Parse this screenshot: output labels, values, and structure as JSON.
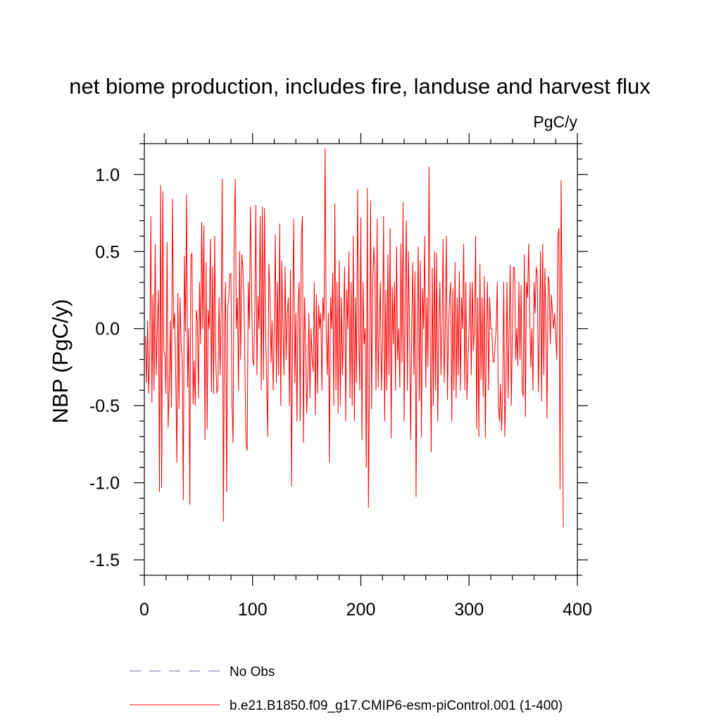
{
  "chart_data": {
    "type": "line",
    "title": "net biome production, includes fire, landuse and harvest flux",
    "units": "PgC/y",
    "ylabel": "NBP  (PgC/y)",
    "xlabel": "",
    "xlim": [
      0,
      400
    ],
    "ylim": [
      -1.6,
      1.2
    ],
    "x_ticks": [
      0,
      100,
      200,
      300,
      400
    ],
    "y_ticks": [
      -1.5,
      -1.0,
      -0.5,
      0.0,
      0.5,
      1.0
    ],
    "x_tick_labels": [
      "0",
      "100",
      "200",
      "300",
      "400"
    ],
    "y_tick_labels": [
      "-1.5",
      "-1.0",
      "-0.5",
      "0.0",
      "0.5",
      "1.0"
    ],
    "grid": false,
    "series": [
      {
        "name": "b.e21.B1850.f09_g17.CMIP6-esm-piControl.001 (1-400)",
        "color": "#ff0000",
        "x_start": 1,
        "values": [
          -0.05,
          -0.35,
          0.05,
          -0.42,
          -0.18,
          0.73,
          -0.48,
          0.22,
          -0.4,
          0.55,
          -0.3,
          0.0,
          0.25,
          -1.06,
          0.93,
          -1.03,
          0.89,
          -0.14,
          -0.17,
          -0.42,
          0.56,
          -0.64,
          -0.4,
          0.05,
          -0.51,
          0.84,
          0.0,
          0.1,
          -0.3,
          -0.87,
          0.23,
          -0.52,
          0.2,
          -0.1,
          -0.2,
          -1.11,
          0.47,
          -0.02,
          0.87,
          -0.38,
          0.0,
          -1.14,
          0.47,
          0.49,
          -0.49,
          -0.21,
          -0.5,
          0.12,
          0.05,
          -0.45,
          0.3,
          -0.1,
          0.69,
          0.0,
          0.67,
          -0.72,
          0.43,
          -0.65,
          0.12,
          0.0,
          0.58,
          -0.41,
          0.4,
          -0.42,
          0.6,
          -0.2,
          -0.42,
          -0.38,
          0.2,
          -0.3,
          0.1,
          0.97,
          -1.25,
          0.0,
          0.3,
          -1.06,
          0.13,
          0.2,
          0.35,
          0.36,
          -0.5,
          -0.74,
          0.65,
          0.97,
          0.0,
          0.2,
          -0.4,
          0.5,
          -0.2,
          0.48,
          0.4,
          0.2,
          -0.3,
          -0.75,
          -0.79,
          0.3,
          0.0,
          0.79,
          0.3,
          -0.2,
          -0.24,
          0.1,
          0.8,
          -0.3,
          0.21,
          0.0,
          0.73,
          -0.4,
          0.79,
          -0.33,
          0.78,
          0.0,
          -0.34,
          -0.7,
          0.42,
          0.26,
          -0.22,
          0.05,
          -0.4,
          0.0,
          0.61,
          -0.35,
          0.3,
          -0.3,
          0.68,
          -0.5,
          0.44,
          0.0,
          -0.3,
          0.4,
          -0.2,
          0.1,
          0.2,
          -0.5,
          0.38,
          -1.02,
          0.0,
          0.71,
          -0.35,
          0.1,
          -0.6,
          0.14,
          0.3,
          -0.6,
          0.6,
          0.73,
          -0.74,
          0.2,
          -0.1,
          -0.55,
          -0.3,
          0.1,
          -0.45,
          0.0,
          -0.2,
          -0.28,
          0.3,
          -0.56,
          0.22,
          -0.42,
          0.15,
          0.0,
          0.1,
          -0.4,
          0.2,
          0.05,
          1.17,
          0.0,
          -0.3,
          0.1,
          -0.87,
          0.2,
          0.0,
          0.36,
          -0.5,
          0.81,
          -0.4,
          0.3,
          -0.55,
          0.44,
          -0.5,
          0.2,
          -0.3,
          0.0,
          0.4,
          -0.6,
          0.25,
          0.0,
          0.5,
          -0.45,
          0.3,
          -0.5,
          0.6,
          -0.6,
          0.2,
          -0.35,
          0.9,
          0.0,
          -0.4,
          0.72,
          -0.72,
          0.3,
          -0.1,
          0.0,
          -0.9,
          0.91,
          -1.16,
          -0.3,
          0.83,
          -0.52,
          0.3,
          0.53,
          0.36,
          -0.4,
          0.71,
          -0.38,
          0.0,
          0.3,
          -0.4,
          -0.1,
          0.73,
          -0.6,
          0.25,
          -0.4,
          0.48,
          -0.3,
          0.65,
          -0.71,
          0.27,
          -0.1,
          0.3,
          -0.4,
          0.53,
          -0.2,
          0.0,
          -0.38,
          0.55,
          -0.22,
          0.82,
          -0.6,
          0.2,
          0.7,
          -0.4,
          0.5,
          0.0,
          -0.72,
          0.0,
          0.43,
          -0.3,
          0.37,
          -1.09,
          0.0,
          0.53,
          -0.47,
          0.44,
          -0.7,
          0.26,
          0.0,
          0.6,
          -0.38,
          0.2,
          -0.25,
          1.05,
          0.0,
          -0.8,
          0.39,
          -0.5,
          0.5,
          -0.4,
          0.49,
          -0.6,
          0.0,
          0.3,
          -0.3,
          0.0,
          0.58,
          -0.35,
          0.0,
          0.6,
          -0.46,
          0.0,
          0.2,
          0.3,
          -0.6,
          0.26,
          -0.4,
          0.43,
          -0.45,
          0.2,
          -0.3,
          0.37,
          -0.4,
          0.2,
          0.0,
          0.55,
          -0.4,
          0.3,
          -0.46,
          -0.2,
          0.0,
          0.3,
          -0.3,
          0.3,
          -0.14,
          0.0,
          0.6,
          -0.65,
          0.2,
          -0.7,
          0.42,
          -0.33,
          0.2,
          -0.44,
          0.34,
          -0.71,
          0.0,
          0.3,
          -0.4,
          0.2,
          0.0,
          0.0,
          -0.2,
          -0.22,
          -0.1,
          0.0,
          0.3,
          -0.5,
          -0.6,
          -0.36,
          -0.66,
          -0.4,
          0.3,
          -0.7,
          -0.35,
          0.3,
          -0.45,
          0.0,
          0.41,
          -0.5,
          0.0,
          0.4,
          0.39,
          -0.2,
          0.0,
          -0.24,
          0.3,
          -0.2,
          0.28,
          -0.4,
          -0.44,
          0.48,
          -0.57,
          0.3,
          0.2,
          0.55,
          0.1,
          -0.25,
          0.0,
          -0.4,
          0.3,
          0.1,
          0.4,
          0.35,
          -0.41,
          0.0,
          0.5,
          -0.47,
          0.55,
          -0.3,
          0.39,
          0.0,
          -0.58,
          0.34,
          0.3,
          -0.1,
          0.22,
          0.1,
          0.0,
          0.1,
          -0.05,
          -0.2,
          0.6,
          0.65,
          -1.04,
          0.96,
          0.1,
          -1.29
        ]
      }
    ],
    "legend_placement": "bottom",
    "legend": [
      {
        "label": "No Obs",
        "style": "dashed",
        "color": "#8a8ab8"
      },
      {
        "label": "b.e21.B1850.f09_g17.CMIP6-esm-piControl.001 (1-400)",
        "style": "solid",
        "color": "#ff0000"
      }
    ]
  }
}
